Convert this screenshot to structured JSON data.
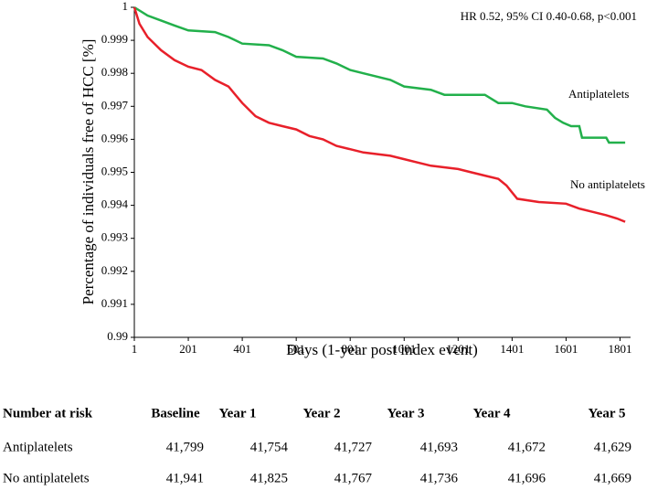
{
  "chart_data": {
    "type": "line",
    "step": true,
    "y_label": "Percentage of individuals free of HCC [%]",
    "x_label": "Days (1-year post index event)",
    "annotation": "HR 0.52, 95% CI 0.40-0.68, p<0.001",
    "xlim": [
      1,
      1840
    ],
    "xticks": [
      1,
      201,
      401,
      601,
      801,
      1001,
      1201,
      1401,
      1601,
      1801
    ],
    "ylim": [
      0.99,
      1
    ],
    "yticks": [
      0.99,
      0.991,
      0.992,
      0.993,
      0.994,
      0.995,
      0.996,
      0.997,
      0.998,
      0.999,
      1
    ],
    "series": [
      {
        "name": "Antiplatelets",
        "color": "#22b04b",
        "x": [
          1,
          50,
          100,
          150,
          201,
          300,
          350,
          401,
          500,
          550,
          601,
          700,
          750,
          801,
          850,
          950,
          1001,
          1100,
          1150,
          1201,
          1300,
          1350,
          1401,
          1450,
          1530,
          1560,
          1590,
          1620,
          1650,
          1660,
          1750,
          1760,
          1820
        ],
        "values": [
          1,
          0.99975,
          0.9996,
          0.99945,
          0.9993,
          0.99925,
          0.9991,
          0.9989,
          0.99885,
          0.9987,
          0.9985,
          0.99845,
          0.9983,
          0.9981,
          0.998,
          0.9978,
          0.9976,
          0.9975,
          0.99735,
          0.99735,
          0.99735,
          0.9971,
          0.9971,
          0.997,
          0.9969,
          0.99665,
          0.9965,
          0.9964,
          0.9964,
          0.99605,
          0.99605,
          0.9959,
          0.9959
        ]
      },
      {
        "name": "No antiplatelets",
        "color": "#e8202a",
        "x": [
          1,
          20,
          50,
          100,
          150,
          201,
          250,
          300,
          350,
          401,
          450,
          500,
          550,
          601,
          650,
          700,
          750,
          801,
          850,
          950,
          1001,
          1050,
          1100,
          1201,
          1250,
          1300,
          1350,
          1380,
          1400,
          1420,
          1500,
          1601,
          1650,
          1700,
          1750,
          1790,
          1820
        ],
        "values": [
          1,
          0.9995,
          0.9991,
          0.9987,
          0.9984,
          0.9982,
          0.9981,
          0.9978,
          0.9976,
          0.9971,
          0.9967,
          0.9965,
          0.9964,
          0.9963,
          0.9961,
          0.996,
          0.9958,
          0.9957,
          0.9956,
          0.9955,
          0.9954,
          0.9953,
          0.9952,
          0.9951,
          0.995,
          0.9949,
          0.9948,
          0.9946,
          0.9944,
          0.9942,
          0.9941,
          0.99405,
          0.9939,
          0.9938,
          0.9937,
          0.9936,
          0.9935
        ]
      }
    ]
  },
  "risk_table": {
    "title": "Number at risk",
    "columns": [
      "Baseline",
      "Year 1",
      "Year 2",
      "Year 3",
      "Year 4",
      "Year 5"
    ],
    "rows": [
      {
        "label": "Antiplatelets",
        "values": [
          "41,799",
          "41,754",
          "41,727",
          "41,693",
          "41,672",
          "41,629"
        ]
      },
      {
        "label": "No antiplatelets",
        "values": [
          "41,941",
          "41,825",
          "41,767",
          "41,736",
          "41,696",
          "41,669"
        ]
      }
    ]
  }
}
